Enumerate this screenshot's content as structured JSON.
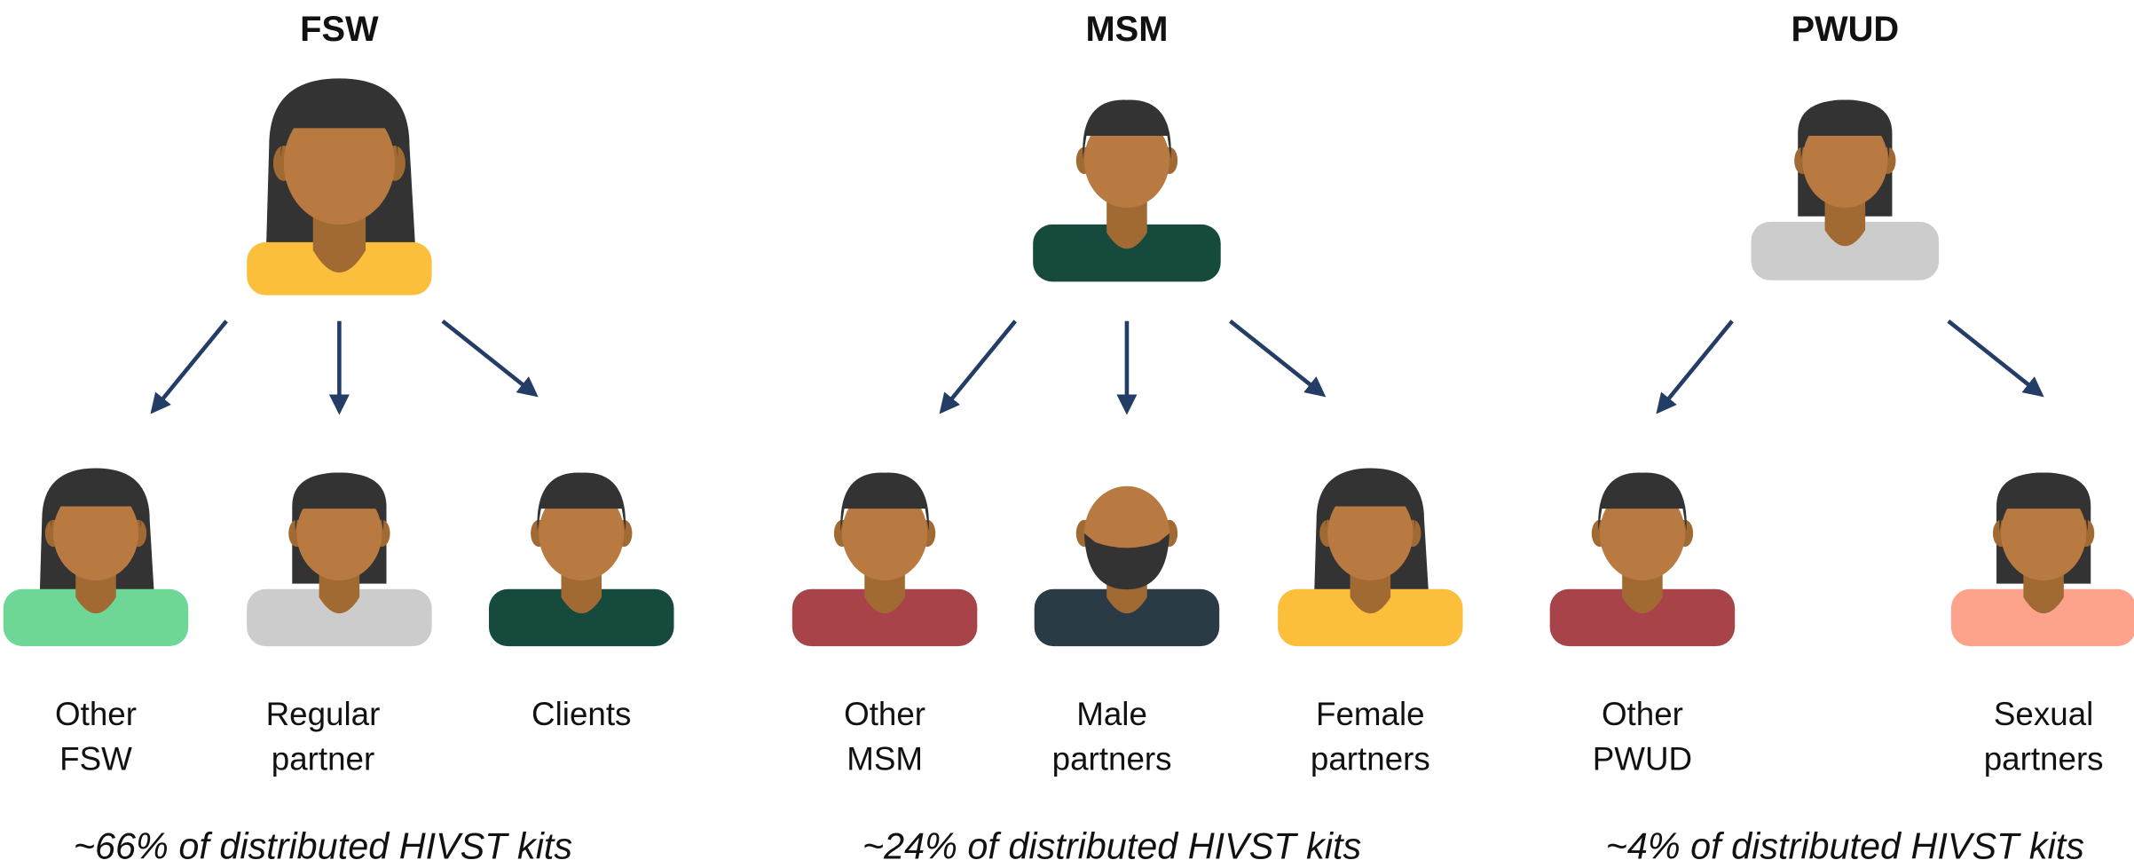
{
  "groups": [
    {
      "title": "FSW",
      "children": [
        {
          "label": [
            "Other",
            "FSW"
          ]
        },
        {
          "label": [
            "Regular",
            "partner"
          ]
        },
        {
          "label": [
            "Clients"
          ]
        }
      ],
      "caption": "~66% of distributed HIVST kits"
    },
    {
      "title": "MSM",
      "children": [
        {
          "label": [
            "Other",
            "MSM"
          ]
        },
        {
          "label": [
            "Male",
            "partners"
          ]
        },
        {
          "label": [
            "Female",
            "partners"
          ]
        }
      ],
      "caption": "~24% of distributed HIVST kits"
    },
    {
      "title": "PWUD",
      "children": [
        {
          "label": [
            "Other",
            "PWUD"
          ]
        },
        {
          "label": [
            "Sexual",
            "partners"
          ]
        }
      ],
      "caption": "~4% of distributed HIVST kits"
    }
  ]
}
